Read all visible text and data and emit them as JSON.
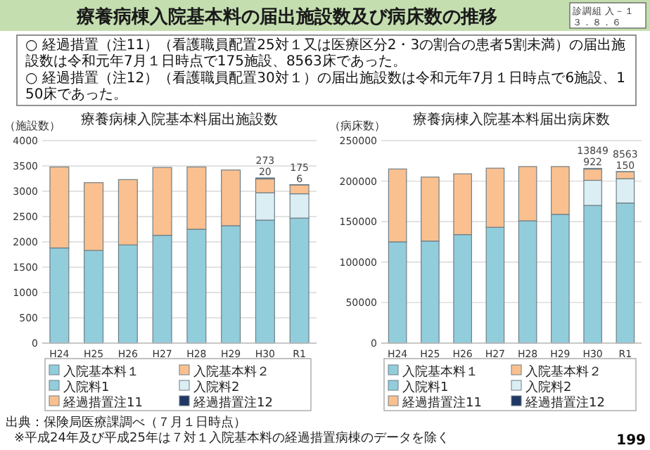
{
  "chart_data": [
    {
      "type": "bar",
      "stacked": true,
      "title": "療養病棟入院基本料届出施設数",
      "ylabel": "（施設数）",
      "categories": [
        "H24",
        "H25",
        "H26",
        "H27",
        "H28",
        "H29",
        "H30",
        "R1"
      ],
      "ylim": [
        0,
        4000
      ],
      "yticks": [
        0,
        500,
        1000,
        1500,
        2000,
        2500,
        3000,
        3500,
        4000
      ],
      "grid": "y",
      "legend": "bottom",
      "series": [
        {
          "name": "入院基本料１",
          "color": "#92cddc",
          "values": [
            1880,
            1830,
            1940,
            2130,
            2250,
            2320,
            null,
            null
          ]
        },
        {
          "name": "入院基本料２",
          "color": "#fac090",
          "values": [
            1600,
            1340,
            1290,
            1340,
            1230,
            1100,
            null,
            null
          ]
        },
        {
          "name": "入院料1",
          "color": "#92cddc",
          "values": [
            null,
            null,
            null,
            null,
            null,
            null,
            2430,
            2470
          ]
        },
        {
          "name": "入院料2",
          "color": "#daeef3",
          "values": [
            null,
            null,
            null,
            null,
            null,
            null,
            540,
            480
          ]
        },
        {
          "name": "経過措置注11",
          "color": "#fac090",
          "values": [
            null,
            null,
            null,
            null,
            null,
            null,
            273,
            175
          ],
          "value_labels": [
            null,
            null,
            null,
            null,
            null,
            null,
            "273",
            "175"
          ]
        },
        {
          "name": "経過措置注12",
          "color": "#1f3864",
          "values": [
            null,
            null,
            null,
            null,
            null,
            null,
            20,
            6
          ],
          "value_labels": [
            null,
            null,
            null,
            null,
            null,
            null,
            "20",
            "6"
          ]
        }
      ],
      "annotations": [
        "療養病棟入院基本料の届出施設数及び病床数の推移",
        "診調組 入－１",
        "３．８．６",
        "○ 経過措置（注11）（看護職員配置25対１又は医療区分2・3の割合の患者5割未満）の届出施設数は令和元年7月１日時点で175施設、8563床であった。",
        "○ 経過措置（注12）（看護職員配置30対１）の届出施設数は令和元年7月１日時点で6施設、150床であった。",
        "出典：保険局医療課調べ（７月１日時点）",
        "※平成24年及び平成25年は７対１入院基本料の経過措置病棟のデータを除く",
        "199"
      ]
    },
    {
      "type": "bar",
      "stacked": true,
      "title": "療養病棟入院基本料届出病床数",
      "ylabel": "（病床数）",
      "categories": [
        "H24",
        "H25",
        "H26",
        "H27",
        "H28",
        "H29",
        "H30",
        "R1"
      ],
      "ylim": [
        0,
        250000
      ],
      "yticks": [
        0,
        50000,
        100000,
        150000,
        200000,
        250000
      ],
      "grid": "y",
      "legend": "bottom",
      "series": [
        {
          "name": "入院基本料１",
          "color": "#92cddc",
          "values": [
            125000,
            126000,
            134000,
            143000,
            151000,
            159000,
            null,
            null
          ]
        },
        {
          "name": "入院基本料２",
          "color": "#fac090",
          "values": [
            90000,
            79000,
            75000,
            73000,
            67000,
            59000,
            null,
            null
          ]
        },
        {
          "name": "入院料1",
          "color": "#92cddc",
          "values": [
            null,
            null,
            null,
            null,
            null,
            null,
            170000,
            173000
          ]
        },
        {
          "name": "入院料2",
          "color": "#daeef3",
          "values": [
            null,
            null,
            null,
            null,
            null,
            null,
            31000,
            30000
          ]
        },
        {
          "name": "経過措置注11",
          "color": "#fac090",
          "values": [
            null,
            null,
            null,
            null,
            null,
            null,
            13849,
            8563
          ],
          "value_labels": [
            null,
            null,
            null,
            null,
            null,
            null,
            "13849",
            "8563"
          ]
        },
        {
          "name": "経過措置注12",
          "color": "#1f3864",
          "values": [
            null,
            null,
            null,
            null,
            null,
            null,
            922,
            150
          ],
          "value_labels": [
            null,
            null,
            null,
            null,
            null,
            null,
            "922",
            "150"
          ]
        }
      ]
    }
  ]
}
